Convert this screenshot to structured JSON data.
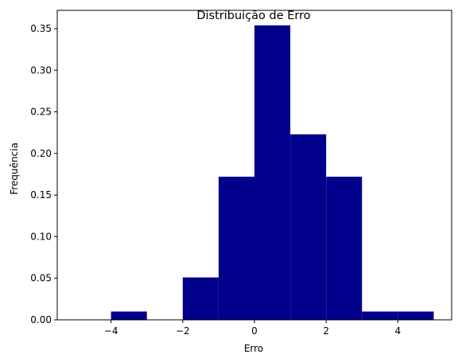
{
  "chart_data": {
    "type": "bar",
    "title": "Distribuição de Erro",
    "xlabel": "Erro",
    "ylabel": "Frequência",
    "bin_edges": [
      -5,
      -4,
      -3,
      -2,
      -1,
      0,
      1,
      2,
      3,
      4,
      5
    ],
    "values": [
      0,
      0.01,
      0,
      0.051,
      0.172,
      0.354,
      0.223,
      0.172,
      0.01,
      0.01
    ],
    "color": "#00008b",
    "xlim": [
      -5.5,
      5.5
    ],
    "ylim": [
      0,
      0.372
    ],
    "xticks": [
      -4,
      -2,
      0,
      2,
      4
    ],
    "xtick_labels": [
      "−4",
      "−2",
      "0",
      "2",
      "4"
    ],
    "yticks": [
      0,
      0.05,
      0.1,
      0.15,
      0.2,
      0.25,
      0.3,
      0.35
    ],
    "ytick_labels": [
      "0.00",
      "0.05",
      "0.10",
      "0.15",
      "0.20",
      "0.25",
      "0.30",
      "0.35"
    ],
    "grid": false,
    "legend": null
  }
}
